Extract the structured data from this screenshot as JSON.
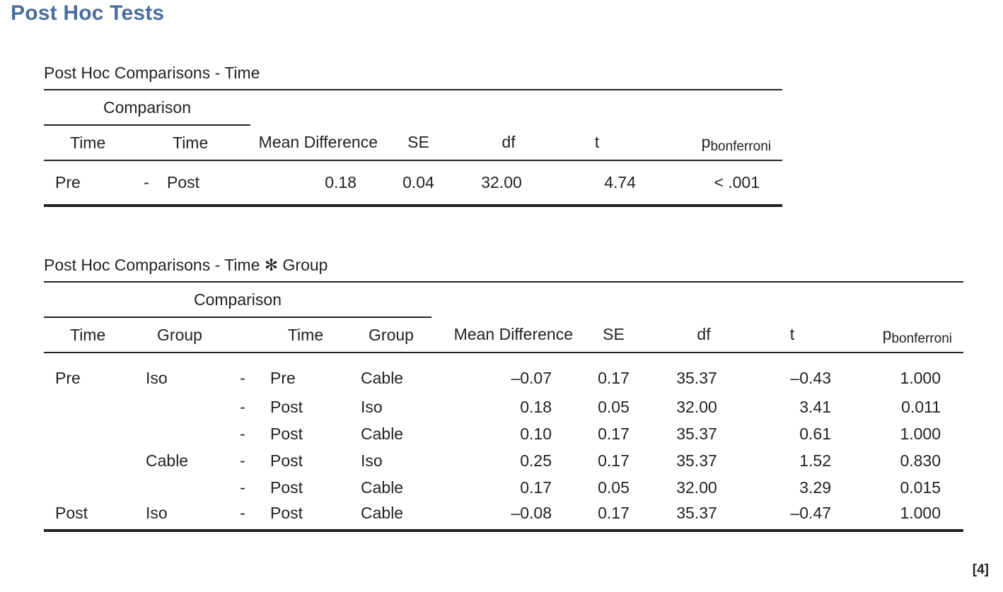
{
  "page_title": "Post Hoc Tests",
  "footnote_tag": "[4]",
  "table1": {
    "caption": "Post Hoc Comparisons - Time",
    "comparison_header": "Comparison",
    "col_time_a": "Time",
    "col_time_b": "Time",
    "col_mean_diff": "Mean Difference",
    "col_se": "SE",
    "col_df": "df",
    "col_t": "t",
    "col_p_main": "p",
    "col_p_sub": "bonferroni",
    "rows": [
      {
        "time_a": "Pre",
        "sep": "-",
        "time_b": "Post",
        "mean_diff": "0.18",
        "se": "0.04",
        "df": "32.00",
        "t": "4.74",
        "p": "< .001"
      }
    ]
  },
  "table2": {
    "caption": "Post Hoc Comparisons - Time ✻ Group",
    "comparison_header": "Comparison",
    "col_time_a": "Time",
    "col_group_a": "Group",
    "col_time_b": "Time",
    "col_group_b": "Group",
    "col_mean_diff": "Mean Difference",
    "col_se": "SE",
    "col_df": "df",
    "col_t": "t",
    "col_p_main": "p",
    "col_p_sub": "bonferroni",
    "rows": [
      {
        "time_a": "Pre",
        "group_a": "Iso",
        "sep": "-",
        "time_b": "Pre",
        "group_b": "Cable",
        "mean_diff": "–0.07",
        "se": "0.17",
        "df": "35.37",
        "t": "–0.43",
        "p": "1.000"
      },
      {
        "time_a": "",
        "group_a": "",
        "sep": "-",
        "time_b": "Post",
        "group_b": "Iso",
        "mean_diff": "0.18",
        "se": "0.05",
        "df": "32.00",
        "t": "3.41",
        "p": "0.011"
      },
      {
        "time_a": "",
        "group_a": "",
        "sep": "-",
        "time_b": "Post",
        "group_b": "Cable",
        "mean_diff": "0.10",
        "se": "0.17",
        "df": "35.37",
        "t": "0.61",
        "p": "1.000"
      },
      {
        "time_a": "",
        "group_a": "Cable",
        "sep": "-",
        "time_b": "Post",
        "group_b": "Iso",
        "mean_diff": "0.25",
        "se": "0.17",
        "df": "35.37",
        "t": "1.52",
        "p": "0.830"
      },
      {
        "time_a": "",
        "group_a": "",
        "sep": "-",
        "time_b": "Post",
        "group_b": "Cable",
        "mean_diff": "0.17",
        "se": "0.05",
        "df": "32.00",
        "t": "3.29",
        "p": "0.015"
      },
      {
        "time_a": "Post",
        "group_a": "Iso",
        "sep": "-",
        "time_b": "Post",
        "group_b": "Cable",
        "mean_diff": "–0.08",
        "se": "0.17",
        "df": "35.37",
        "t": "–0.47",
        "p": "1.000"
      }
    ]
  }
}
